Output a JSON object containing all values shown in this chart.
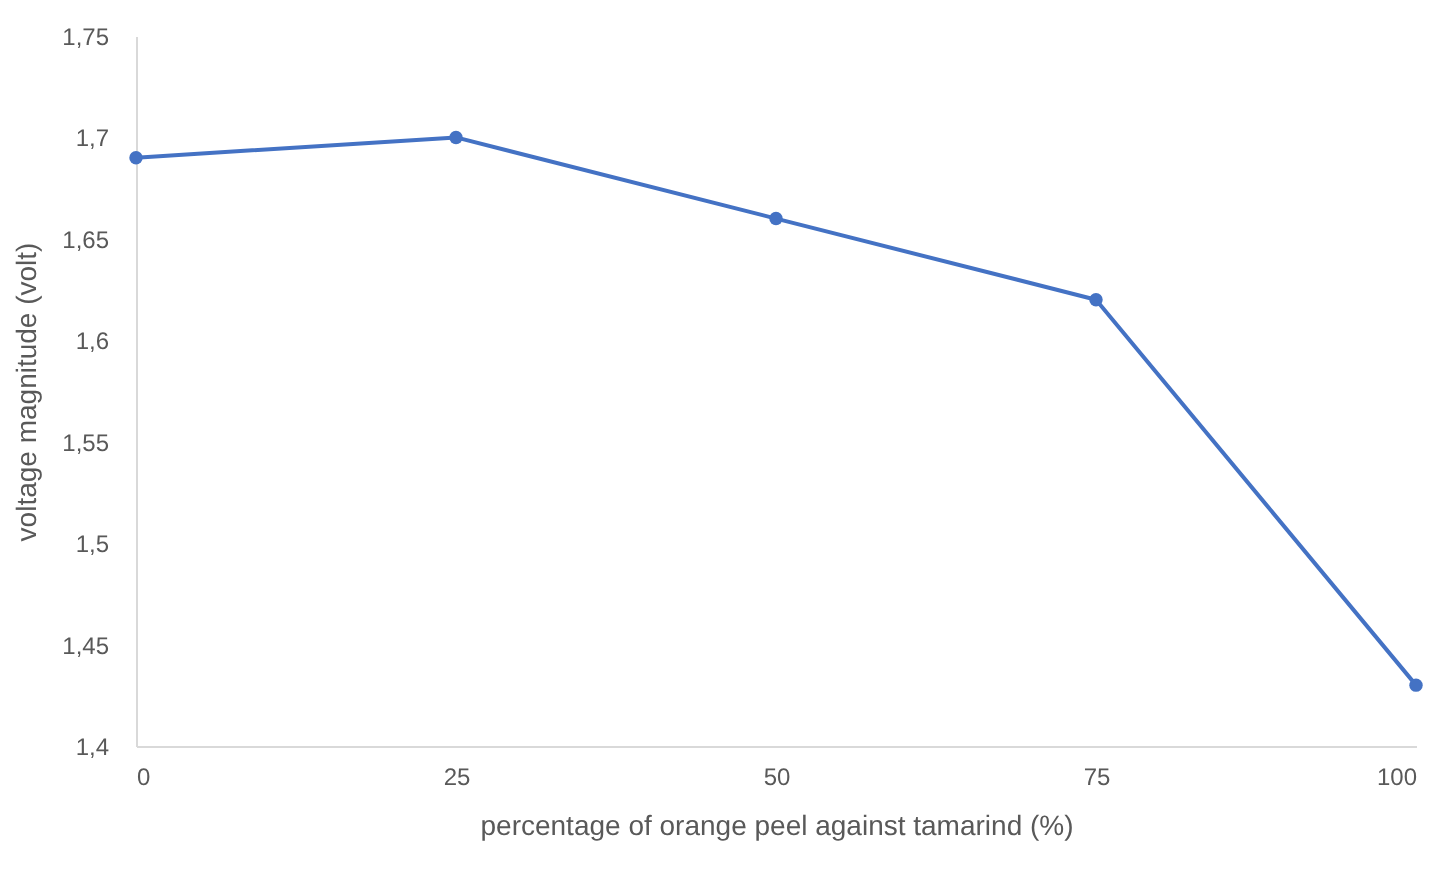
{
  "chart_data": {
    "type": "line",
    "xlabel": "percentage of orange peel against tamarind (%)",
    "ylabel": "voltage magnitude (volt)",
    "x": [
      0,
      25,
      50,
      75,
      100
    ],
    "series": [
      {
        "color": "#4472c4",
        "values": [
          1.69,
          1.7,
          1.66,
          1.62,
          1.43
        ]
      }
    ],
    "xlim": [
      0,
      100
    ],
    "xticks": [
      0,
      25,
      50,
      75,
      100
    ],
    "ylim": [
      1.4,
      1.75
    ],
    "yticks": [
      {
        "value": 1.4,
        "label": "1,4"
      },
      {
        "value": 1.45,
        "label": "1,45"
      },
      {
        "value": 1.5,
        "label": "1,5"
      },
      {
        "value": 1.55,
        "label": "1,55"
      },
      {
        "value": 1.6,
        "label": "1,6"
      },
      {
        "value": 1.65,
        "label": "1,65"
      },
      {
        "value": 1.7,
        "label": "1,7"
      },
      {
        "value": 1.75,
        "label": "1,75"
      }
    ],
    "grid": false,
    "legend": false,
    "marker": "circle",
    "line_style": "solid"
  }
}
